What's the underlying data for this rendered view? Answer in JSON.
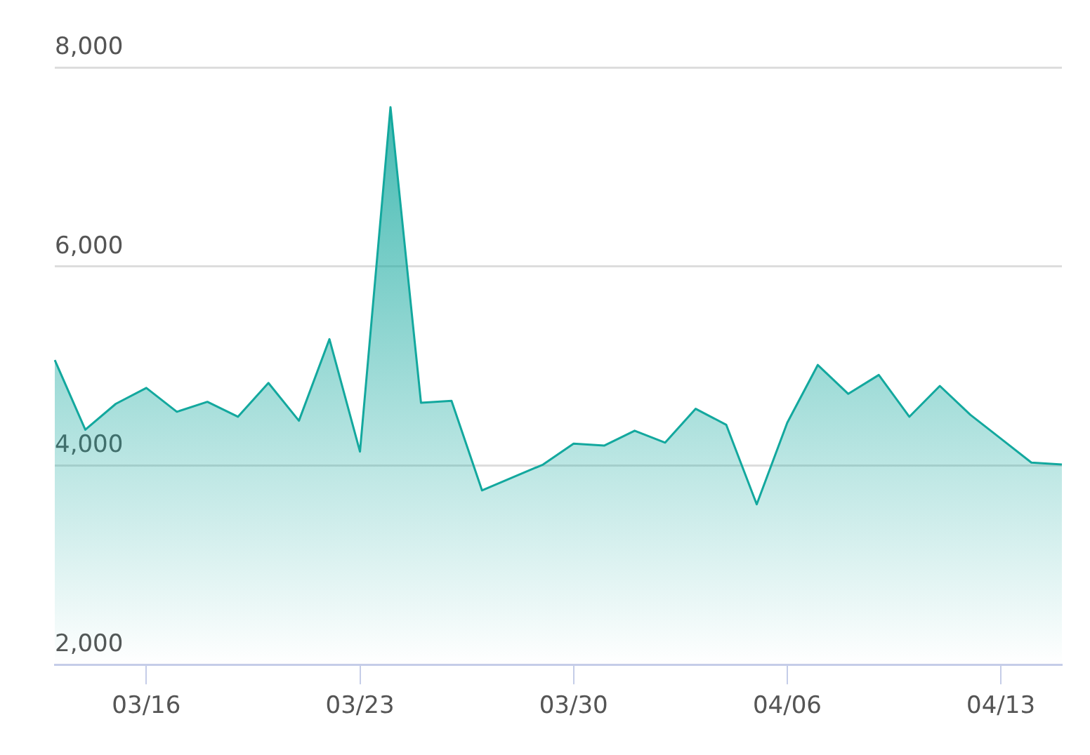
{
  "chart_data": {
    "type": "area",
    "categories": [
      null,
      null,
      null,
      "03/16",
      null,
      null,
      null,
      null,
      null,
      null,
      "03/23",
      null,
      null,
      null,
      null,
      null,
      null,
      "03/30",
      null,
      null,
      null,
      null,
      null,
      null,
      "04/06",
      null,
      null,
      null,
      null,
      null,
      null,
      "04/13",
      null,
      null
    ],
    "series": [
      {
        "color": "#13a89e",
        "values": [
          5060,
          4360,
          4620,
          4780,
          4540,
          4640,
          4490,
          4830,
          4450,
          5270,
          4140,
          7600,
          4630,
          4650,
          3750,
          3880,
          4010,
          4220,
          4200,
          4350,
          4230,
          4570,
          4410,
          3610,
          4430,
          5010,
          4720,
          4910,
          4490,
          4800,
          4510,
          4270,
          4030,
          4010
        ]
      }
    ],
    "ylim": [
      2000,
      8000
    ],
    "yticks": [
      {
        "value": 2000,
        "label": "2,000"
      },
      {
        "value": 4000,
        "label": "4,000"
      },
      {
        "value": 6000,
        "label": "6,000"
      },
      {
        "value": 8000,
        "label": "8,000"
      }
    ],
    "grid": "y",
    "legend": false
  }
}
